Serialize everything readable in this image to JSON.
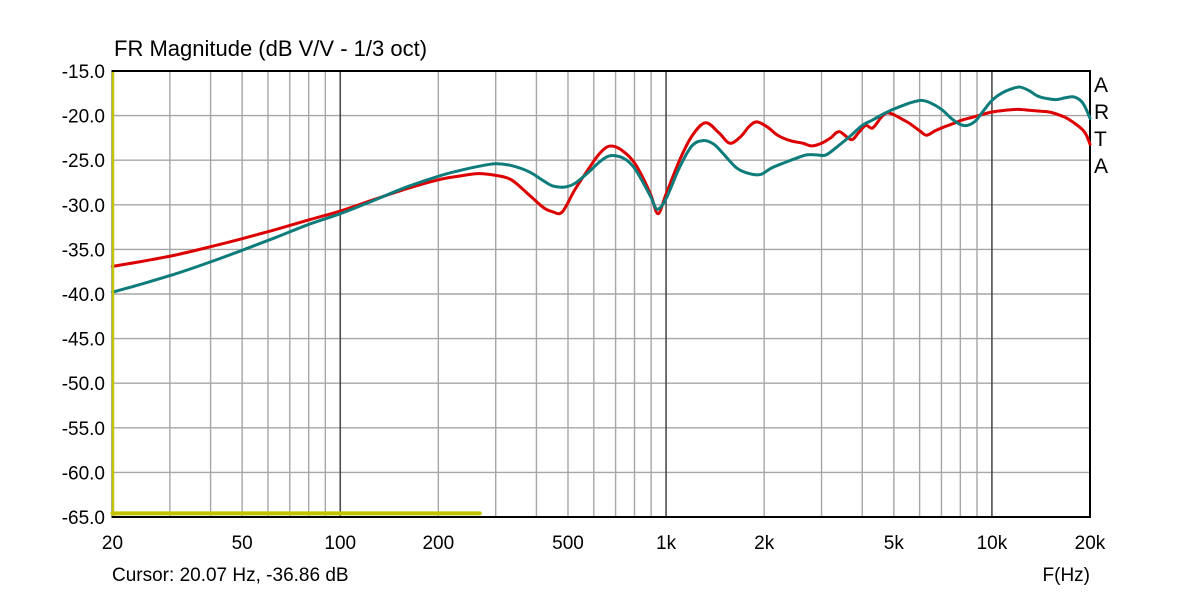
{
  "chart": {
    "title": "FR Magnitude (dB V/V - 1/3 oct)",
    "cursor_text": "Cursor: 20.07 Hz, -36.86 dB",
    "xlabel": "F(Hz)",
    "side_label": [
      "A",
      "R",
      "T",
      "A"
    ]
  },
  "chart_data": {
    "type": "line",
    "title": "FR Magnitude (dB V/V - 1/3 oct)",
    "xlabel": "F(Hz)",
    "ylabel": "dB V/V",
    "x_scale": "log",
    "xlim": [
      20,
      20000
    ],
    "ylim": [
      -65,
      -15
    ],
    "grid": true,
    "legend": false,
    "colors": {
      "series_red": "#dd0000",
      "series_teal": "#0e7c7b",
      "overlay_yellow": "#c3c300",
      "grid_minor": "#a6a6a6",
      "grid_major": "#4d4d4d",
      "frame": "#000000",
      "background": "#ffffff"
    },
    "x_ticks": [
      {
        "value": 20,
        "label": "20"
      },
      {
        "value": 50,
        "label": "50"
      },
      {
        "value": 100,
        "label": "100"
      },
      {
        "value": 200,
        "label": "200"
      },
      {
        "value": 500,
        "label": "500"
      },
      {
        "value": 1000,
        "label": "1k"
      },
      {
        "value": 2000,
        "label": "2k"
      },
      {
        "value": 5000,
        "label": "5k"
      },
      {
        "value": 10000,
        "label": "10k"
      },
      {
        "value": 20000,
        "label": "20k"
      }
    ],
    "y_ticks": [
      {
        "value": -15,
        "label": "-15.0"
      },
      {
        "value": -20,
        "label": "-20.0"
      },
      {
        "value": -25,
        "label": "-25.0"
      },
      {
        "value": -30,
        "label": "-30.0"
      },
      {
        "value": -35,
        "label": "-35.0"
      },
      {
        "value": -40,
        "label": "-40.0"
      },
      {
        "value": -45,
        "label": "-45.0"
      },
      {
        "value": -50,
        "label": "-50.0"
      },
      {
        "value": -55,
        "label": "-55.0"
      },
      {
        "value": -60,
        "label": "-60.0"
      },
      {
        "value": -65,
        "label": "-65.0"
      }
    ],
    "minor_gridlines_x": [
      30,
      40,
      50,
      60,
      70,
      80,
      90,
      200,
      300,
      400,
      500,
      600,
      700,
      800,
      900,
      2000,
      3000,
      4000,
      5000,
      6000,
      7000,
      8000,
      9000
    ],
    "major_gridlines_x": [
      100,
      1000,
      10000
    ],
    "cursor": {
      "freq_hz": 20.07,
      "level_db": -36.86
    },
    "series": [
      {
        "name": "red-curve",
        "color": "#dd0000",
        "points": [
          [
            20,
            -36.9
          ],
          [
            25,
            -36.3
          ],
          [
            31.5,
            -35.6
          ],
          [
            40,
            -34.7
          ],
          [
            50,
            -33.8
          ],
          [
            63,
            -32.8
          ],
          [
            80,
            -31.7
          ],
          [
            100,
            -30.7
          ],
          [
            125,
            -29.5
          ],
          [
            160,
            -28.2
          ],
          [
            200,
            -27.2
          ],
          [
            230,
            -26.8
          ],
          [
            265,
            -26.5
          ],
          [
            300,
            -26.7
          ],
          [
            335,
            -27.2
          ],
          [
            380,
            -28.9
          ],
          [
            420,
            -30.3
          ],
          [
            450,
            -30.8
          ],
          [
            480,
            -30.8
          ],
          [
            525,
            -28.3
          ],
          [
            580,
            -25.9
          ],
          [
            620,
            -24.4
          ],
          [
            660,
            -23.5
          ],
          [
            700,
            -23.5
          ],
          [
            750,
            -24.2
          ],
          [
            800,
            -25.3
          ],
          [
            850,
            -27.0
          ],
          [
            900,
            -29.0
          ],
          [
            945,
            -31.0
          ],
          [
            1000,
            -28.8
          ],
          [
            1100,
            -25.0
          ],
          [
            1200,
            -22.3
          ],
          [
            1320,
            -20.8
          ],
          [
            1450,
            -21.9
          ],
          [
            1570,
            -23.1
          ],
          [
            1700,
            -22.3
          ],
          [
            1800,
            -21.2
          ],
          [
            1900,
            -20.7
          ],
          [
            2050,
            -21.3
          ],
          [
            2200,
            -22.2
          ],
          [
            2400,
            -22.8
          ],
          [
            2630,
            -23.1
          ],
          [
            2800,
            -23.4
          ],
          [
            3000,
            -23.1
          ],
          [
            3200,
            -22.5
          ],
          [
            3400,
            -21.8
          ],
          [
            3700,
            -22.7
          ],
          [
            3900,
            -21.9
          ],
          [
            4100,
            -21.1
          ],
          [
            4300,
            -21.4
          ],
          [
            4550,
            -20.3
          ],
          [
            4750,
            -19.7
          ],
          [
            5000,
            -19.9
          ],
          [
            5300,
            -20.4
          ],
          [
            5600,
            -20.9
          ],
          [
            6000,
            -21.7
          ],
          [
            6300,
            -22.2
          ],
          [
            6700,
            -21.7
          ],
          [
            7100,
            -21.3
          ],
          [
            7600,
            -20.9
          ],
          [
            8100,
            -20.5
          ],
          [
            8700,
            -20.2
          ],
          [
            9300,
            -19.9
          ],
          [
            10000,
            -19.6
          ],
          [
            11000,
            -19.4
          ],
          [
            12000,
            -19.3
          ],
          [
            13000,
            -19.4
          ],
          [
            14000,
            -19.5
          ],
          [
            15000,
            -19.6
          ],
          [
            16000,
            -19.9
          ],
          [
            17000,
            -20.3
          ],
          [
            18000,
            -20.9
          ],
          [
            19000,
            -21.6
          ],
          [
            19500,
            -22.2
          ],
          [
            20000,
            -23.2
          ]
        ]
      },
      {
        "name": "teal-curve",
        "color": "#0e7c7b",
        "points": [
          [
            20,
            -39.8
          ],
          [
            25,
            -38.8
          ],
          [
            31.5,
            -37.7
          ],
          [
            40,
            -36.4
          ],
          [
            50,
            -35.1
          ],
          [
            63,
            -33.7
          ],
          [
            80,
            -32.2
          ],
          [
            100,
            -31.0
          ],
          [
            125,
            -29.6
          ],
          [
            160,
            -28.0
          ],
          [
            200,
            -26.8
          ],
          [
            230,
            -26.2
          ],
          [
            265,
            -25.7
          ],
          [
            300,
            -25.4
          ],
          [
            335,
            -25.6
          ],
          [
            380,
            -26.3
          ],
          [
            420,
            -27.3
          ],
          [
            450,
            -27.9
          ],
          [
            490,
            -28.0
          ],
          [
            525,
            -27.6
          ],
          [
            580,
            -26.3
          ],
          [
            620,
            -25.3
          ],
          [
            660,
            -24.6
          ],
          [
            700,
            -24.5
          ],
          [
            750,
            -24.9
          ],
          [
            800,
            -25.9
          ],
          [
            850,
            -27.5
          ],
          [
            900,
            -29.2
          ],
          [
            940,
            -30.5
          ],
          [
            1000,
            -29.3
          ],
          [
            1100,
            -25.8
          ],
          [
            1200,
            -23.4
          ],
          [
            1300,
            -22.8
          ],
          [
            1400,
            -23.2
          ],
          [
            1500,
            -24.3
          ],
          [
            1650,
            -25.9
          ],
          [
            1800,
            -26.5
          ],
          [
            1950,
            -26.6
          ],
          [
            2100,
            -25.9
          ],
          [
            2300,
            -25.3
          ],
          [
            2500,
            -24.8
          ],
          [
            2700,
            -24.4
          ],
          [
            2900,
            -24.4
          ],
          [
            3100,
            -24.4
          ],
          [
            3400,
            -23.3
          ],
          [
            3700,
            -22.2
          ],
          [
            4000,
            -21.1
          ],
          [
            4300,
            -20.5
          ],
          [
            4600,
            -19.9
          ],
          [
            4900,
            -19.4
          ],
          [
            5300,
            -18.9
          ],
          [
            5700,
            -18.5
          ],
          [
            6100,
            -18.3
          ],
          [
            6500,
            -18.6
          ],
          [
            7000,
            -19.3
          ],
          [
            7500,
            -20.3
          ],
          [
            8000,
            -21.0
          ],
          [
            8400,
            -21.1
          ],
          [
            8900,
            -20.6
          ],
          [
            9400,
            -19.5
          ],
          [
            10000,
            -18.3
          ],
          [
            10700,
            -17.5
          ],
          [
            11500,
            -17.0
          ],
          [
            12200,
            -16.8
          ],
          [
            13000,
            -17.2
          ],
          [
            13800,
            -17.8
          ],
          [
            14800,
            -18.1
          ],
          [
            15800,
            -18.2
          ],
          [
            16800,
            -18.0
          ],
          [
            17800,
            -17.9
          ],
          [
            18700,
            -18.3
          ],
          [
            19300,
            -19.0
          ],
          [
            20000,
            -20.3
          ]
        ]
      },
      {
        "name": "yellow-overlay",
        "color": "#c3c300",
        "points": [
          [
            20,
            -64.6
          ],
          [
            268,
            -64.6
          ]
        ]
      }
    ]
  }
}
